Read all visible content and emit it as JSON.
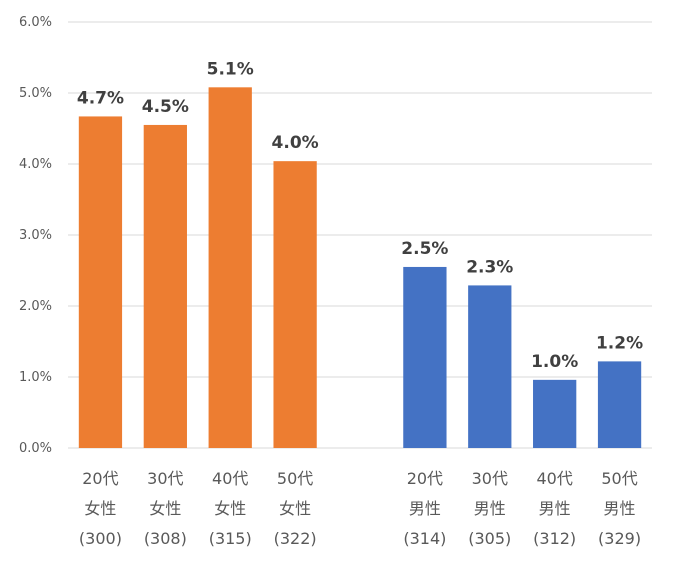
{
  "chart_data": {
    "type": "bar",
    "title": "",
    "xlabel": "",
    "ylabel": "",
    "ylim": [
      0,
      6
    ],
    "yticks": [
      "0.0%",
      "1.0%",
      "2.0%",
      "3.0%",
      "4.0%",
      "5.0%",
      "6.0%"
    ],
    "grid": true,
    "legend": "none",
    "bars": [
      {
        "group": "女性",
        "lines": [
          "20代",
          "女性",
          "(300)"
        ],
        "value": 4.67,
        "label": "4.7%",
        "color": "#ED7D31"
      },
      {
        "group": "女性",
        "lines": [
          "30代",
          "女性",
          "(308)"
        ],
        "value": 4.55,
        "label": "4.5%",
        "color": "#ED7D31"
      },
      {
        "group": "女性",
        "lines": [
          "40代",
          "女性",
          "(315)"
        ],
        "value": 5.08,
        "label": "5.1%",
        "color": "#ED7D31"
      },
      {
        "group": "女性",
        "lines": [
          "50代",
          "女性",
          "(322)"
        ],
        "value": 4.04,
        "label": "4.0%",
        "color": "#ED7D31"
      },
      {
        "group": "男性",
        "lines": [
          "20代",
          "男性",
          "(314)"
        ],
        "value": 2.55,
        "label": "2.5%",
        "color": "#4472C4"
      },
      {
        "group": "男性",
        "lines": [
          "30代",
          "男性",
          "(305)"
        ],
        "value": 2.29,
        "label": "2.3%",
        "color": "#4472C4"
      },
      {
        "group": "男性",
        "lines": [
          "40代",
          "男性",
          "(312)"
        ],
        "value": 0.96,
        "label": "1.0%",
        "color": "#4472C4"
      },
      {
        "group": "男性",
        "lines": [
          "50代",
          "男性",
          "(329)"
        ],
        "value": 1.22,
        "label": "1.2%",
        "color": "#4472C4"
      }
    ]
  }
}
